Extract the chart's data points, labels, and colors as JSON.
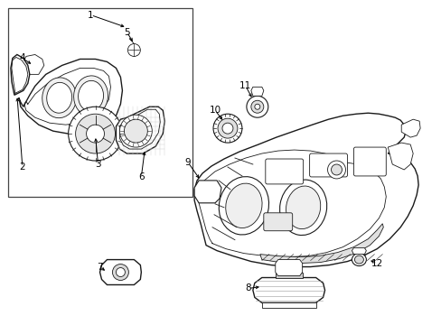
{
  "bg_color": "#ffffff",
  "line_color": "#1a1a1a",
  "label_color": "#000000",
  "fig_width": 4.89,
  "fig_height": 3.6,
  "dpi": 100,
  "lw_main": 1.0,
  "lw_thin": 0.6,
  "lw_med": 0.8,
  "font_size": 7.5
}
